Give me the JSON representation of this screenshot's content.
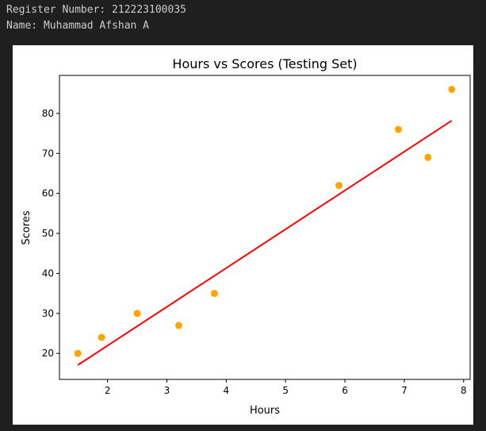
{
  "output": {
    "register_line": "Register Number: 212223100035",
    "name_line": "Name: Muhammad Afshan A"
  },
  "colors": {
    "background": "#1f1f1f",
    "scatter": "#ffa500",
    "regression_line": "#ff0000"
  },
  "chart_data": {
    "type": "scatter",
    "title": "Hours vs Scores (Testing Set)",
    "xlabel": "Hours",
    "ylabel": "Scores",
    "xlim": [
      1.19,
      8.11
    ],
    "ylim": [
      13.5,
      89.5
    ],
    "xticks": [
      2,
      3,
      4,
      5,
      6,
      7,
      8
    ],
    "yticks": [
      20,
      30,
      40,
      50,
      60,
      70,
      80
    ],
    "grid": false,
    "legend": false,
    "series": [
      {
        "type": "scatter",
        "color": "#ffa500",
        "x": [
          1.5,
          1.9,
          2.5,
          3.2,
          3.8,
          5.9,
          6.9,
          7.4,
          7.8
        ],
        "y": [
          20,
          24,
          30,
          27,
          35,
          62,
          76,
          69,
          86
        ]
      },
      {
        "type": "line",
        "color": "#ff0000",
        "x": [
          1.5,
          7.8
        ],
        "y": [
          17.1,
          78.2
        ]
      }
    ]
  }
}
